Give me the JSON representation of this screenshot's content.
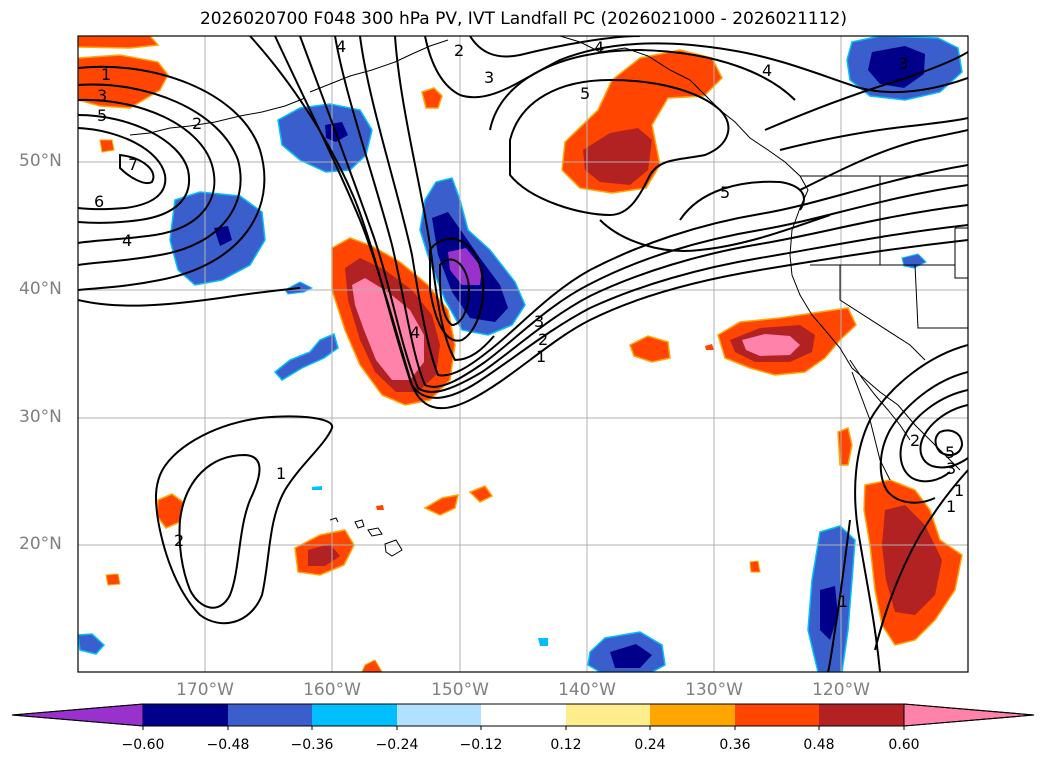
{
  "title": "2026020700 F048 300 hPa PV, IVT Landfall PC (2026021000 - 2026021112)",
  "latitude_labels": [
    "50°N",
    "40°N",
    "30°N",
    "20°N"
  ],
  "longitude_labels": [
    "170°W",
    "160°W",
    "150°W",
    "140°W",
    "130°W",
    "120°W"
  ],
  "colorbar": {
    "tick_labels": [
      "−0.60",
      "−0.48",
      "−0.36",
      "−0.24",
      "−0.12",
      "0.12",
      "0.24",
      "0.36",
      "0.48",
      "0.60"
    ],
    "colors": [
      "#9932cc",
      "#00008b",
      "#3a5fcd",
      "#00bfff",
      "#b0e2ff",
      "#ffffff",
      "#ffec8b",
      "#ffa500",
      "#ff4500",
      "#b22222",
      "#ff82ab"
    ]
  },
  "contour_labels": [
    "1",
    "3",
    "5",
    "2",
    "4",
    "6",
    "7",
    "4",
    "2",
    "3",
    "4",
    "5",
    "4",
    "3",
    "5",
    "3",
    "2",
    "1",
    "4",
    "1",
    "2",
    "2",
    "1",
    "1",
    "3",
    "5",
    "1"
  ]
}
